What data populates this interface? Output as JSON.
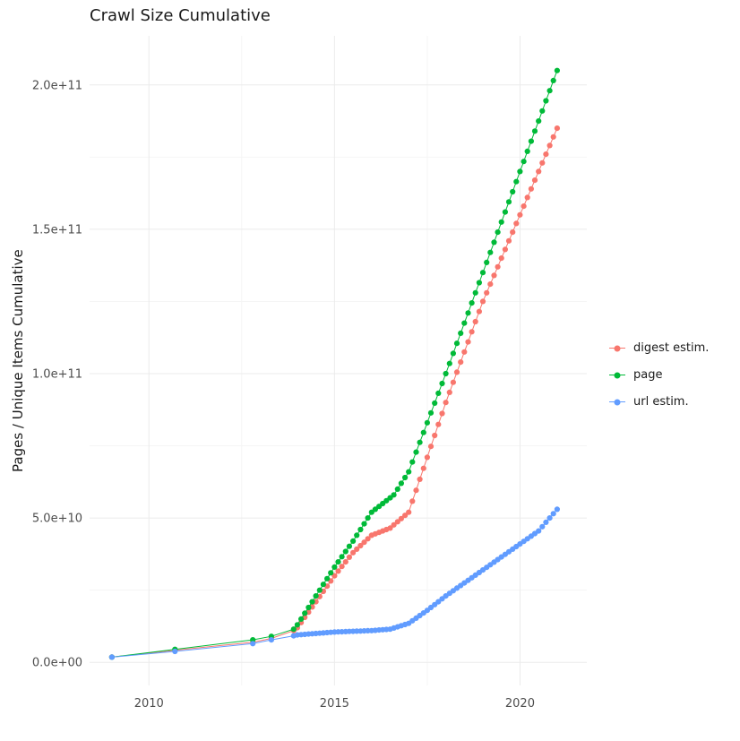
{
  "chart_data": {
    "type": "scatter",
    "title": "Crawl Size Cumulative",
    "xlabel": "",
    "ylabel": "Pages / Unique Items Cumulative",
    "legend_position": "right",
    "grid": true,
    "values_scale": 1000000000.0,
    "xlim": [
      2008.4,
      2021.8
    ],
    "ylim": [
      -8,
      217
    ],
    "x_ticks": [
      {
        "label": "2010",
        "value": 2010
      },
      {
        "label": "2015",
        "value": 2015
      },
      {
        "label": "2020",
        "value": 2020
      }
    ],
    "y_ticks": [
      {
        "label": "0.0e+00",
        "value": 0
      },
      {
        "label": "5.0e+10",
        "value": 50
      },
      {
        "label": "1.0e+11",
        "value": 100
      },
      {
        "label": "1.5e+11",
        "value": 150
      },
      {
        "label": "2.0e+11",
        "value": 200
      }
    ],
    "colors": {
      "digest": "#F8766D",
      "page": "#00BA38",
      "url": "#619CFF",
      "grid_major": "#ebebeb",
      "grid_minor": "#f5f5f5",
      "tick_label": "#4d4d4d",
      "text": "#1a1a1a",
      "background": "#ffffff"
    },
    "x": [
      2009,
      2010.7,
      2012.8,
      2013.3,
      2013.9,
      2014,
      2014.1,
      2014.2,
      2014.3,
      2014.4,
      2014.5,
      2014.6,
      2014.7,
      2014.8,
      2014.9,
      2015,
      2015.1,
      2015.2,
      2015.3,
      2015.4,
      2015.5,
      2015.6,
      2015.7,
      2015.8,
      2015.9,
      2016,
      2016.1,
      2016.2,
      2016.3,
      2016.4,
      2016.5,
      2016.6,
      2016.7,
      2016.8,
      2016.9,
      2017,
      2017.1,
      2017.2,
      2017.3,
      2017.4,
      2017.5,
      2017.6,
      2017.7,
      2017.8,
      2017.9,
      2018,
      2018.1,
      2018.2,
      2018.3,
      2018.4,
      2018.5,
      2018.6,
      2018.7,
      2018.8,
      2018.9,
      2019,
      2019.1,
      2019.2,
      2019.3,
      2019.4,
      2019.5,
      2019.6,
      2019.7,
      2019.8,
      2019.9,
      2020,
      2020.1,
      2020.2,
      2020.3,
      2020.4,
      2020.5,
      2020.6,
      2020.7,
      2020.8,
      2020.9,
      2021
    ],
    "series": [
      {
        "id": "digest-estim",
        "name": "digest estim.",
        "color": "#F8766D",
        "values": [
          1.8,
          4.2,
          7,
          8.3,
          11,
          12,
          13.8,
          15.6,
          17.4,
          19.2,
          21,
          22.8,
          24.6,
          26.4,
          28.2,
          30,
          31.6,
          33.2,
          34.8,
          36.4,
          38,
          39.2,
          40.4,
          41.6,
          42.8,
          44,
          44.5,
          45,
          45.5,
          46,
          46.5,
          47.6,
          48.7,
          49.8,
          50.9,
          52,
          55.8,
          59.6,
          63.4,
          67.2,
          71,
          74.8,
          78.6,
          82.4,
          86.2,
          90,
          93.5,
          97,
          100.5,
          104,
          107.5,
          111,
          114.5,
          118,
          121.5,
          125,
          128,
          131,
          134,
          137,
          140,
          143,
          146,
          149,
          152,
          155,
          158,
          161,
          164,
          167,
          170,
          173,
          176,
          179,
          182,
          185
        ]
      },
      {
        "id": "page",
        "name": "page",
        "color": "#00BA38",
        "values": [
          1.8,
          4.5,
          7.8,
          9,
          11.5,
          13,
          15,
          17,
          19,
          21,
          23,
          25,
          27,
          29,
          31,
          33,
          34.8,
          36.6,
          38.4,
          40.2,
          42,
          44,
          46,
          48,
          50,
          52,
          53,
          54,
          55,
          56,
          57,
          58,
          60,
          62,
          64,
          66,
          69.4,
          72.8,
          76.2,
          79.6,
          83,
          86.4,
          89.8,
          93.2,
          96.6,
          100,
          103.5,
          107,
          110.5,
          114,
          117.5,
          121,
          124.5,
          128,
          131.5,
          135,
          138.5,
          142,
          145.5,
          149,
          152.5,
          156,
          159.5,
          163,
          166.5,
          170,
          173.5,
          177,
          180.5,
          184,
          187.5,
          191,
          194.5,
          198,
          201.5,
          205
        ]
      },
      {
        "id": "url-estim",
        "name": "url estim.",
        "color": "#619CFF",
        "values": [
          1.8,
          3.8,
          6.5,
          7.8,
          9.2,
          9.5,
          9.6,
          9.7,
          9.8,
          9.9,
          10,
          10.1,
          10.2,
          10.3,
          10.4,
          10.5,
          10.55,
          10.6,
          10.65,
          10.7,
          10.75,
          10.8,
          10.85,
          10.9,
          10.95,
          11,
          11.1,
          11.2,
          11.3,
          11.4,
          11.5,
          11.9,
          12.3,
          12.7,
          13.1,
          13.5,
          14.4,
          15.3,
          16.2,
          17.1,
          18,
          19,
          20,
          21,
          22,
          23,
          23.9,
          24.8,
          25.7,
          26.6,
          27.5,
          28.4,
          29.3,
          30.2,
          31.1,
          32,
          32.9,
          33.8,
          34.7,
          35.6,
          36.5,
          37.4,
          38.3,
          39.2,
          40.1,
          41,
          41.9,
          42.8,
          43.7,
          44.6,
          45.5,
          47,
          48.5,
          50,
          51.5,
          53
        ]
      }
    ]
  }
}
